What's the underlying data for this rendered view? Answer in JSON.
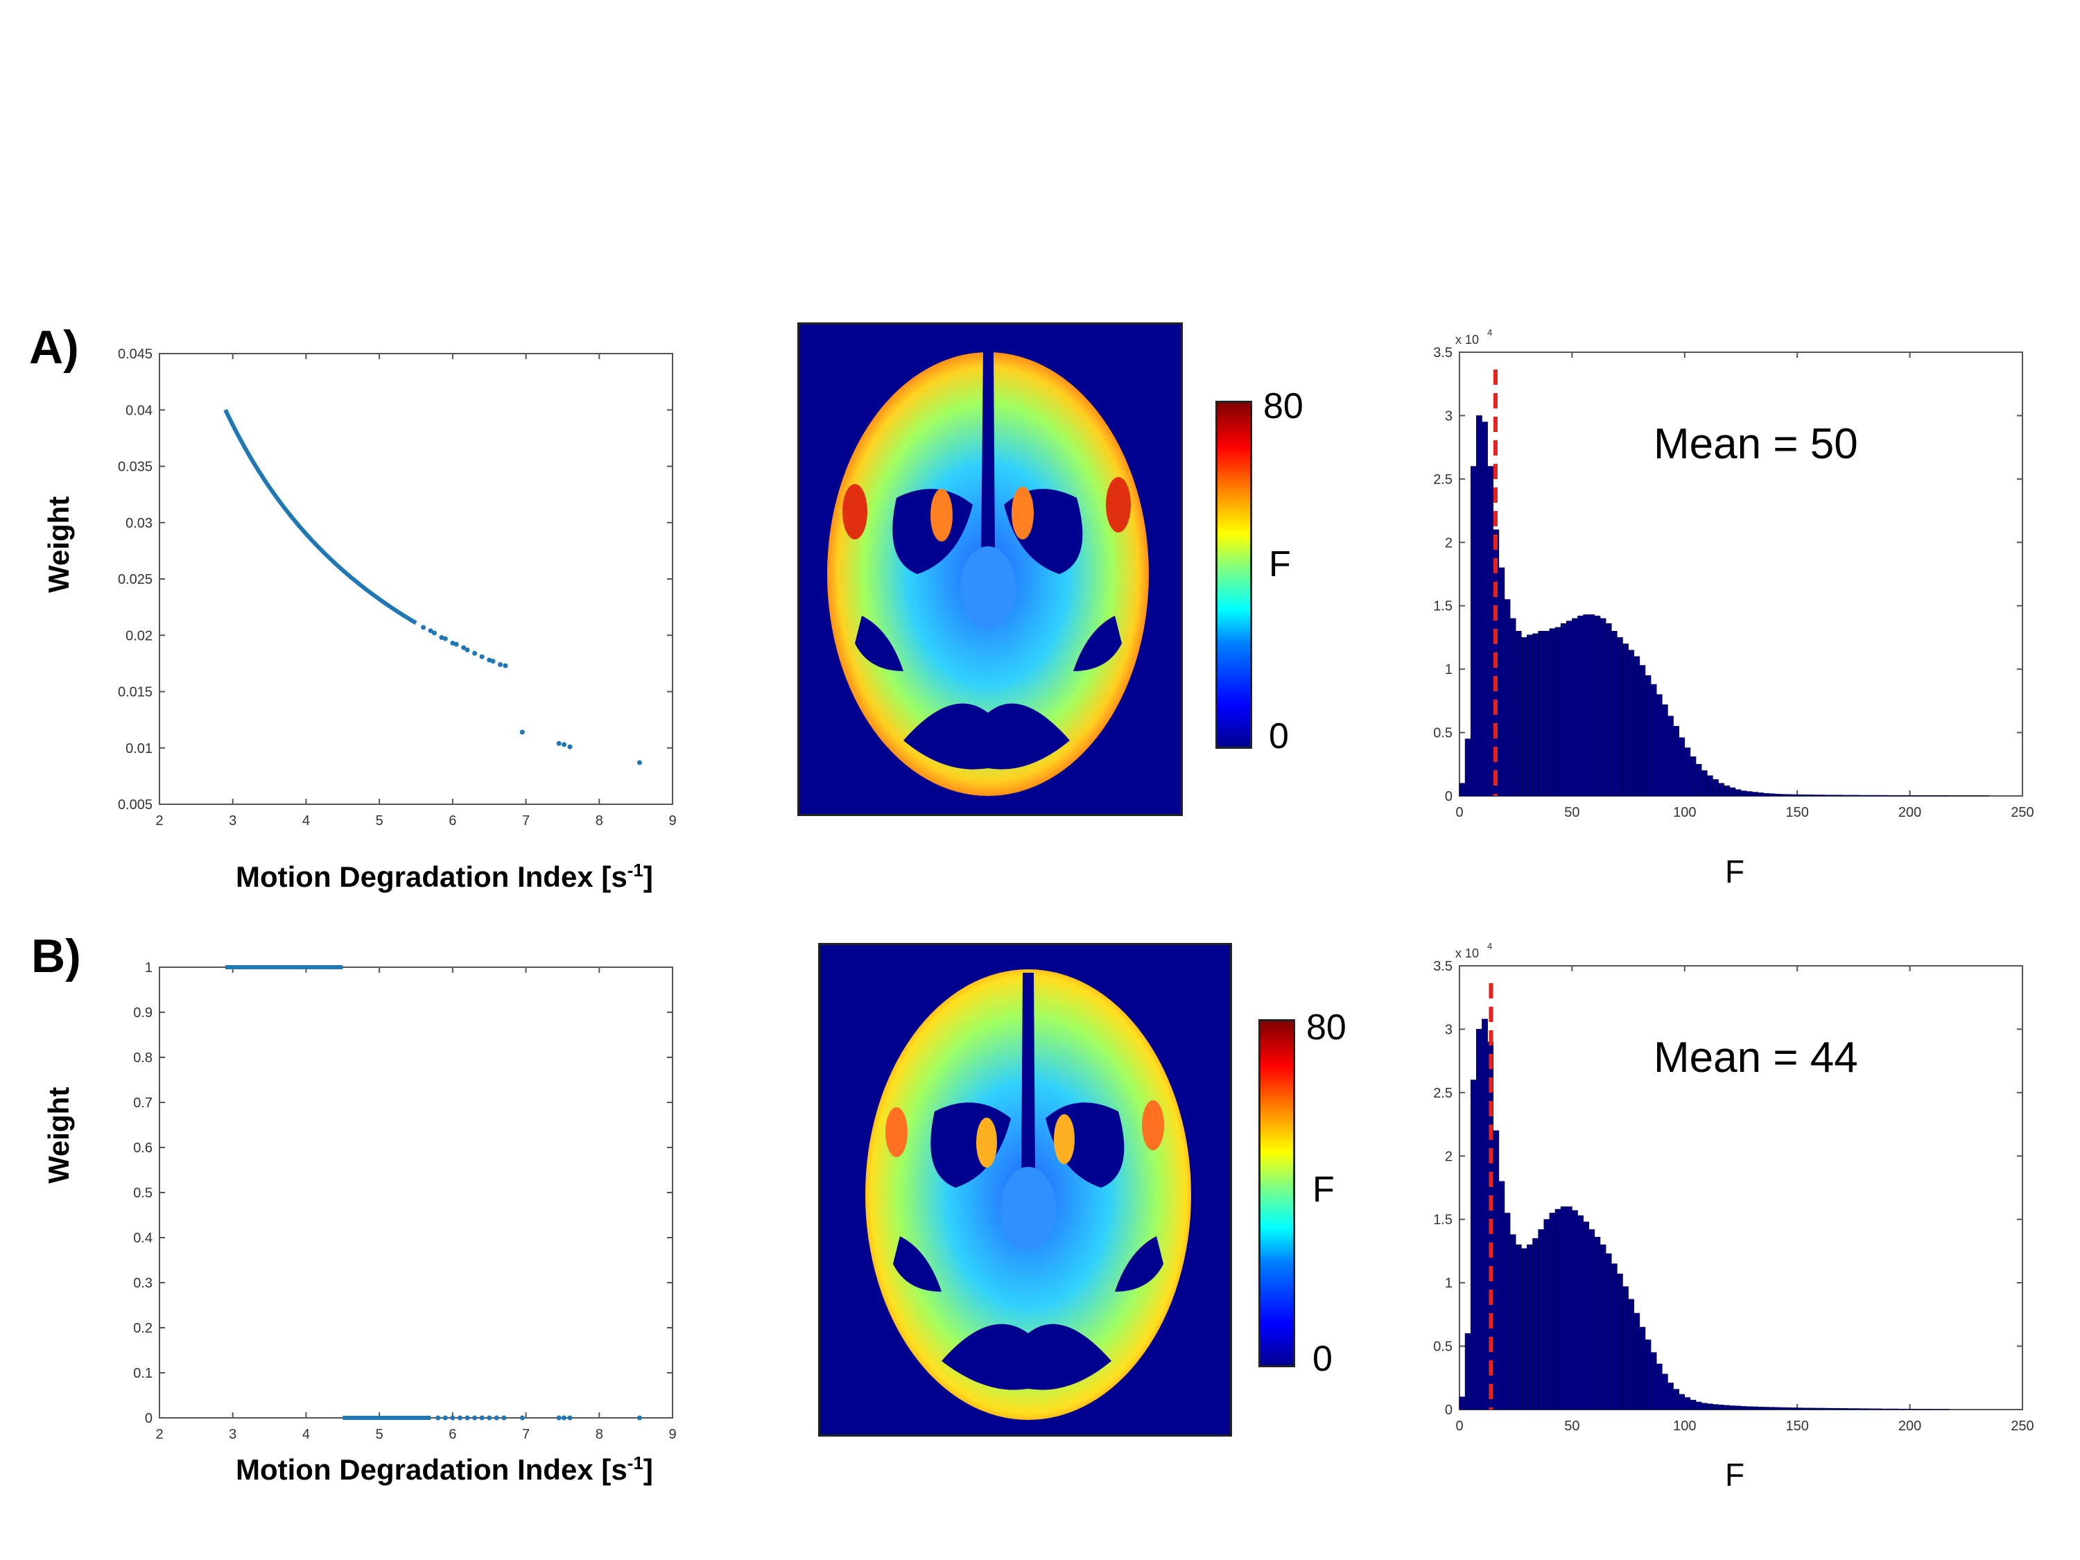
{
  "panels": {
    "A": {
      "label": "A)",
      "mean_text": "Mean = 50"
    },
    "B": {
      "label": "B)",
      "mean_text": "Mean = 44"
    }
  },
  "common": {
    "scatter_xlabel_main": "Motion Degradation Index [s",
    "scatter_xlabel_sup": "-1",
    "scatter_xlabel_end": "]",
    "scatter_ylabel": "Weight",
    "hist_xlabel": "F",
    "colorbar_label": "F",
    "colorbar_max": "80",
    "colorbar_min": "0",
    "hist_exponent": "x 10",
    "hist_exponent_sup": "4"
  },
  "colors": {
    "scatter": "#1f77b4",
    "hist_fill": "#000080",
    "threshold_line": "#e8221c",
    "brain_bg": "#00008f"
  },
  "chart_data": [
    {
      "id": "A-scatter",
      "type": "scatter",
      "xlim": [
        2,
        9
      ],
      "ylim": [
        0.005,
        0.045
      ],
      "xticks": [
        "2",
        "3",
        "4",
        "5",
        "6",
        "7",
        "8",
        "9"
      ],
      "yticks": [
        "0.005",
        "0.01",
        "0.015",
        "0.02",
        "0.025",
        "0.03",
        "0.035",
        "0.04",
        "0.045"
      ],
      "curve": {
        "form": "y = 0.116/x",
        "x_from": 2.9,
        "x_to": 5.5
      },
      "x": [
        5.6,
        5.7,
        5.75,
        5.85,
        5.9,
        6.0,
        6.05,
        6.15,
        6.2,
        6.3,
        6.4,
        6.5,
        6.55,
        6.65,
        6.72,
        6.95,
        7.45,
        7.52,
        7.6,
        8.55
      ],
      "y": [
        0.0207,
        0.0204,
        0.0202,
        0.0198,
        0.0197,
        0.0193,
        0.0192,
        0.0189,
        0.0187,
        0.0184,
        0.0181,
        0.0178,
        0.0177,
        0.0174,
        0.0173,
        0.0114,
        0.0104,
        0.0103,
        0.0101,
        0.0087
      ]
    },
    {
      "id": "A-hist",
      "type": "bar",
      "xlim": [
        0,
        250
      ],
      "ylim": [
        0,
        3.5
      ],
      "xticks": [
        "0",
        "50",
        "100",
        "150",
        "200",
        "250"
      ],
      "yticks": [
        "0",
        "0.5",
        "1",
        "1.5",
        "2",
        "2.5",
        "3",
        "3.5"
      ],
      "bin_width": 2.5,
      "threshold_x": 16,
      "bin_centers": [
        1.25,
        3.75,
        6.25,
        8.75,
        11.25,
        13.75,
        16.25,
        18.75,
        21.25,
        23.75,
        26.25,
        28.75,
        31.25,
        33.75,
        36.25,
        38.75,
        41.25,
        43.75,
        46.25,
        48.75,
        51.25,
        53.75,
        56.25,
        58.75,
        61.25,
        63.75,
        66.25,
        68.75,
        71.25,
        73.75,
        76.25,
        78.75,
        81.25,
        83.75,
        86.25,
        88.75,
        91.25,
        93.75,
        96.25,
        98.75,
        101.25,
        103.75,
        106.25,
        108.75,
        111.25,
        113.75,
        116.25,
        118.75,
        121.25,
        123.75,
        126.25,
        128.75,
        131.25,
        133.75,
        136.25,
        138.75,
        141.25,
        143.75,
        146.25,
        148.75,
        151.25,
        153.75,
        156.25,
        158.75,
        161.25,
        163.75,
        166.25,
        168.75,
        171.25,
        173.75,
        176.25,
        178.75,
        181.25,
        183.75,
        186.25,
        188.75,
        191.25,
        193.75,
        196.25,
        198.75,
        201.25,
        203.75,
        206.25,
        208.75,
        211.25,
        213.75,
        216.25,
        218.75,
        221.25,
        223.75,
        226.25,
        228.75,
        231.25,
        233.75
      ],
      "values": [
        0.1,
        0.45,
        2.6,
        3.0,
        2.95,
        2.6,
        2.1,
        1.8,
        1.55,
        1.4,
        1.3,
        1.25,
        1.27,
        1.28,
        1.3,
        1.3,
        1.32,
        1.33,
        1.36,
        1.38,
        1.4,
        1.42,
        1.43,
        1.43,
        1.42,
        1.4,
        1.36,
        1.3,
        1.25,
        1.2,
        1.15,
        1.1,
        1.03,
        0.95,
        0.88,
        0.8,
        0.72,
        0.63,
        0.55,
        0.46,
        0.38,
        0.31,
        0.25,
        0.2,
        0.16,
        0.13,
        0.1,
        0.08,
        0.065,
        0.05,
        0.04,
        0.035,
        0.03,
        0.025,
        0.02,
        0.018,
        0.015,
        0.013,
        0.012,
        0.011,
        0.01,
        0.009,
        0.009,
        0.008,
        0.008,
        0.007,
        0.007,
        0.007,
        0.006,
        0.006,
        0.006,
        0.005,
        0.005,
        0.005,
        0.005,
        0.005,
        0.004,
        0.004,
        0.004,
        0.004,
        0.004,
        0.003,
        0.003,
        0.003,
        0.003,
        0.003,
        0.003,
        0.002,
        0.002,
        0.002,
        0.002,
        0.002,
        0.002,
        0.002
      ]
    },
    {
      "id": "B-scatter",
      "type": "scatter",
      "xlim": [
        2,
        9
      ],
      "ylim": [
        0,
        1
      ],
      "xticks": [
        "2",
        "3",
        "4",
        "5",
        "6",
        "7",
        "8",
        "9"
      ],
      "yticks": [
        "0",
        "0.1",
        "0.2",
        "0.3",
        "0.4",
        "0.5",
        "0.6",
        "0.7",
        "0.8",
        "0.9",
        "1"
      ],
      "segments": [
        {
          "x_from": 2.9,
          "x_to": 4.5,
          "y": 1
        },
        {
          "x_from": 4.5,
          "x_to": 5.7,
          "y": 0
        }
      ],
      "x": [
        5.8,
        5.9,
        6.0,
        6.1,
        6.2,
        6.3,
        6.4,
        6.5,
        6.6,
        6.7,
        6.95,
        7.45,
        7.52,
        7.6,
        8.55
      ],
      "y": [
        0,
        0,
        0,
        0,
        0,
        0,
        0,
        0,
        0,
        0,
        0,
        0,
        0,
        0,
        0
      ]
    },
    {
      "id": "B-hist",
      "type": "bar",
      "xlim": [
        0,
        250
      ],
      "ylim": [
        0,
        3.5
      ],
      "xticks": [
        "0",
        "50",
        "100",
        "150",
        "200",
        "250"
      ],
      "yticks": [
        "0",
        "0.5",
        "1",
        "1.5",
        "2",
        "2.5",
        "3",
        "3.5"
      ],
      "bin_width": 2.5,
      "threshold_x": 14,
      "bin_centers": [
        1.25,
        3.75,
        6.25,
        8.75,
        11.25,
        13.75,
        16.25,
        18.75,
        21.25,
        23.75,
        26.25,
        28.75,
        31.25,
        33.75,
        36.25,
        38.75,
        41.25,
        43.75,
        46.25,
        48.75,
        51.25,
        53.75,
        56.25,
        58.75,
        61.25,
        63.75,
        66.25,
        68.75,
        71.25,
        73.75,
        76.25,
        78.75,
        81.25,
        83.75,
        86.25,
        88.75,
        91.25,
        93.75,
        96.25,
        98.75,
        101.25,
        103.75,
        106.25,
        108.75,
        111.25,
        113.75,
        116.25,
        118.75,
        121.25,
        123.75,
        126.25,
        128.75,
        131.25,
        133.75,
        136.25,
        138.75,
        141.25,
        143.75,
        146.25,
        148.75,
        151.25,
        153.75,
        156.25,
        158.75,
        161.25,
        163.75,
        166.25,
        168.75,
        171.25,
        173.75,
        176.25,
        178.75,
        181.25,
        183.75,
        186.25,
        188.75,
        191.25,
        193.75,
        196.25,
        198.75,
        201.25,
        203.75,
        206.25,
        208.75,
        211.25,
        213.75,
        216.25
      ],
      "values": [
        0.1,
        0.6,
        2.6,
        3.0,
        3.08,
        2.9,
        2.2,
        1.8,
        1.55,
        1.38,
        1.3,
        1.27,
        1.3,
        1.35,
        1.42,
        1.5,
        1.55,
        1.58,
        1.6,
        1.6,
        1.57,
        1.53,
        1.48,
        1.42,
        1.36,
        1.3,
        1.23,
        1.15,
        1.07,
        0.97,
        0.87,
        0.76,
        0.65,
        0.55,
        0.45,
        0.36,
        0.28,
        0.21,
        0.16,
        0.12,
        0.095,
        0.075,
        0.06,
        0.05,
        0.045,
        0.04,
        0.036,
        0.033,
        0.03,
        0.028,
        0.025,
        0.023,
        0.022,
        0.02,
        0.019,
        0.018,
        0.017,
        0.016,
        0.015,
        0.014,
        0.013,
        0.012,
        0.012,
        0.011,
        0.011,
        0.01,
        0.01,
        0.009,
        0.009,
        0.008,
        0.008,
        0.007,
        0.007,
        0.006,
        0.006,
        0.005,
        0.005,
        0.005,
        0.004,
        0.004,
        0.004,
        0.003,
        0.003,
        0.003,
        0.002,
        0.002,
        0.002
      ]
    }
  ]
}
